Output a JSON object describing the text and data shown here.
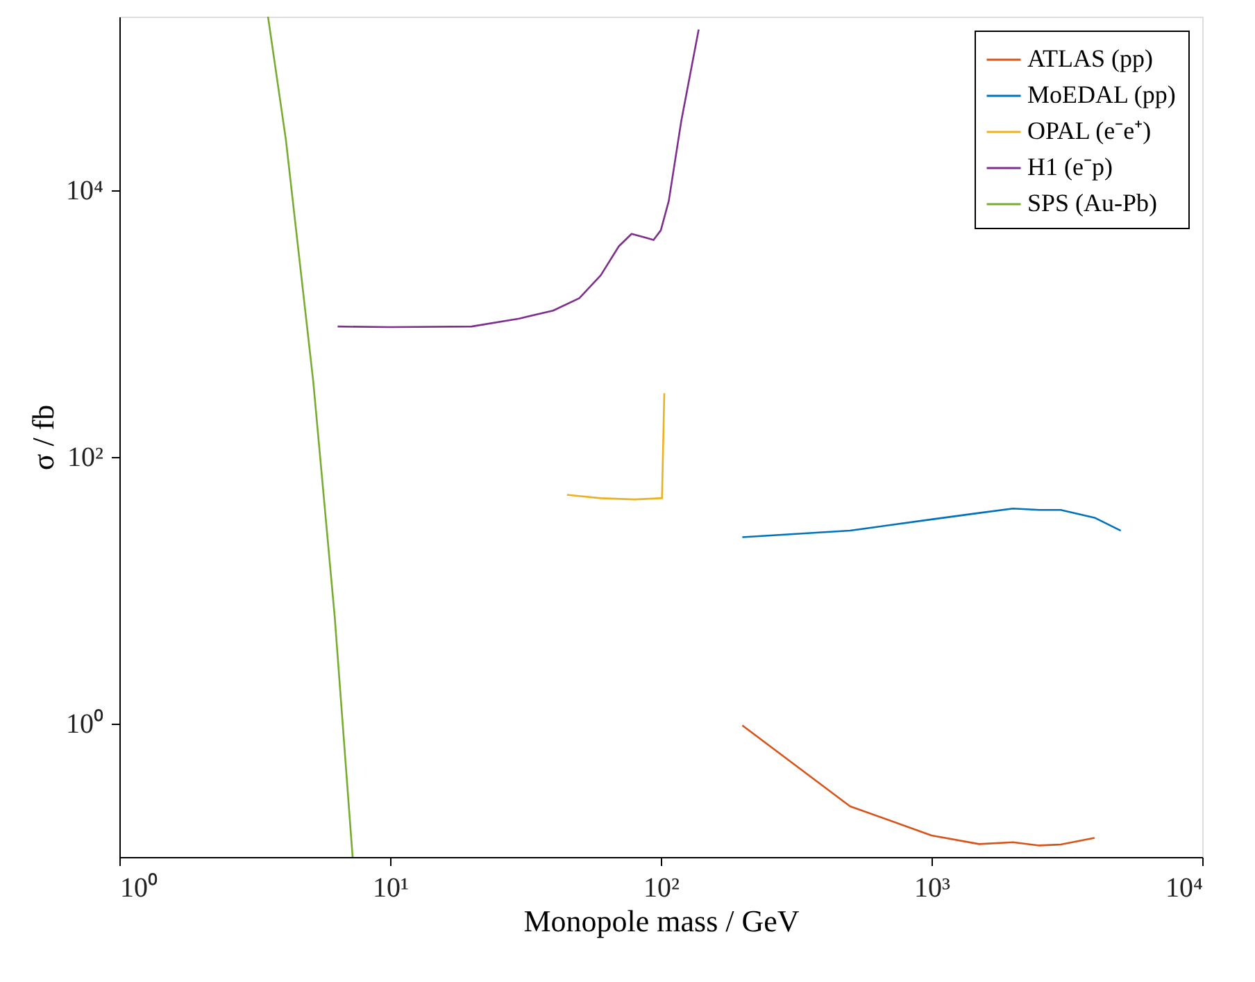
{
  "chart_data": {
    "type": "line",
    "xlabel": "Monopole mass / GeV",
    "ylabel": "σ / fb",
    "log": "xy",
    "grid": false,
    "legend": "top right",
    "line_style": "solid",
    "marker": "none",
    "xlim": [
      1,
      10000
    ],
    "xticks": [
      {
        "value": 1,
        "label": "10⁰"
      },
      {
        "value": 10,
        "label": "10¹"
      },
      {
        "value": 100,
        "label": "10²"
      },
      {
        "value": 1000,
        "label": "10³"
      },
      {
        "value": 10000,
        "label": "10⁴"
      }
    ],
    "ylim": [
      0.1,
      200000
    ],
    "yticks": [
      {
        "value": 1,
        "label": "10⁰"
      },
      {
        "value": 100,
        "label": "10²"
      },
      {
        "value": 10000,
        "label": "10⁴"
      }
    ],
    "series": [
      {
        "name": "ATLAS (pp)",
        "color": "#d95319",
        "x": [
          200,
          500,
          1000,
          1500,
          2000,
          2500,
          3000,
          4000
        ],
        "values": [
          0.97,
          0.24,
          0.145,
          0.125,
          0.129,
          0.122,
          0.124,
          0.139
        ]
      },
      {
        "name": "MoEDAL (pp)",
        "color": "#0072bd",
        "x": [
          200,
          500,
          1000,
          1500,
          2000,
          2500,
          3000,
          4000,
          5000
        ],
        "values": [
          25,
          28,
          34,
          38,
          41,
          40,
          40,
          35,
          28
        ]
      },
      {
        "name": "OPAL (e⁻e⁺)",
        "color": "#edb120",
        "x": [
          45,
          60,
          80,
          100,
          101,
          103
        ],
        "values": [
          52,
          49,
          48,
          49,
          49,
          300
        ]
      },
      {
        "name": "H1 (e⁻p)",
        "color": "#7e2f8e",
        "x": [
          6.4,
          10,
          20,
          30,
          40,
          50,
          60,
          70,
          78,
          88,
          94,
          100,
          107,
          119,
          138
        ],
        "values": [
          950,
          940,
          950,
          1090,
          1250,
          1550,
          2300,
          3800,
          4700,
          4400,
          4230,
          5000,
          8300,
          33000,
          160000
        ]
      },
      {
        "name": "SPS (Au-Pb)",
        "color": "#77ac30",
        "x": [
          3.54,
          4.12,
          5.2,
          6.24,
          7.27
        ],
        "values": [
          200000,
          24000,
          370,
          6.4,
          0.1
        ]
      }
    ]
  }
}
